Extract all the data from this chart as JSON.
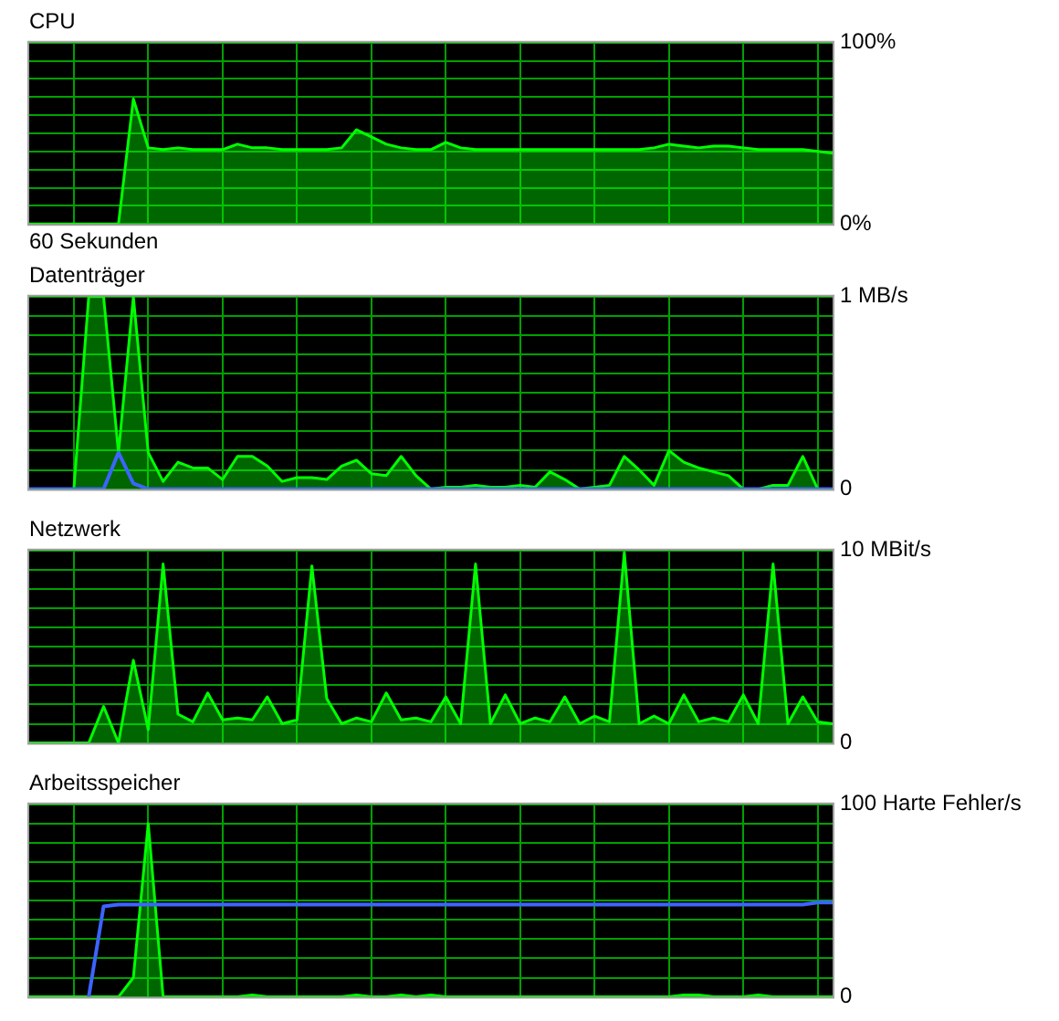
{
  "chart_data": [
    {
      "type": "area",
      "title": "CPU",
      "xlabel": "60 Sekunden",
      "grid": true,
      "tick_labels": "y",
      "categories": [
        null,
        null,
        null,
        null,
        null,
        null,
        null,
        null,
        null,
        null,
        null,
        null,
        null,
        null,
        null,
        null,
        null,
        null,
        null,
        null,
        null,
        null,
        null,
        null,
        null,
        null,
        null,
        null,
        null,
        null,
        null,
        null,
        null,
        null,
        null,
        null,
        null,
        null,
        null,
        null,
        null,
        null,
        null,
        null,
        null,
        null,
        null,
        null,
        null,
        null,
        null,
        null,
        null,
        null,
        null
      ],
      "ylim": [
        0,
        100
      ],
      "yticks": [
        {
          "value": 0,
          "label": "0%"
        },
        {
          "value": 10,
          "label": null
        },
        {
          "value": 20,
          "label": null
        },
        {
          "value": 30,
          "label": null
        },
        {
          "value": 40,
          "label": null
        },
        {
          "value": 50,
          "label": null
        },
        {
          "value": 60,
          "label": null
        },
        {
          "value": 70,
          "label": null
        },
        {
          "value": 80,
          "label": null
        },
        {
          "value": 90,
          "label": null
        },
        {
          "value": 100,
          "label": "100%"
        }
      ],
      "series": [
        {
          "color": "#00ff00",
          "values": [
            0,
            0,
            0,
            0,
            0,
            0,
            0,
            69,
            42,
            41,
            42,
            41,
            41,
            41,
            44,
            42,
            42,
            41,
            41,
            41,
            41,
            42,
            52,
            48,
            44,
            42,
            41,
            41,
            45,
            42,
            41,
            41,
            41,
            41,
            41,
            41,
            41,
            41,
            41,
            41,
            41,
            41,
            42,
            44,
            43,
            42,
            43,
            43,
            42,
            41,
            41,
            41,
            41,
            40,
            39
          ]
        }
      ]
    },
    {
      "type": "area",
      "title": "Datenträger",
      "grid": true,
      "tick_labels": "y",
      "categories": [
        null,
        null,
        null,
        null,
        null,
        null,
        null,
        null,
        null,
        null,
        null,
        null,
        null,
        null,
        null,
        null,
        null,
        null,
        null,
        null,
        null,
        null,
        null,
        null,
        null,
        null,
        null,
        null,
        null,
        null,
        null,
        null,
        null,
        null,
        null,
        null,
        null,
        null,
        null,
        null,
        null,
        null,
        null,
        null,
        null,
        null,
        null,
        null,
        null,
        null,
        null,
        null,
        null,
        null,
        null
      ],
      "ylim": [
        0,
        1
      ],
      "yticks": [
        {
          "value": 0,
          "label": "0"
        },
        {
          "value": 0.1,
          "label": null
        },
        {
          "value": 0.2,
          "label": null
        },
        {
          "value": 0.3,
          "label": null
        },
        {
          "value": 0.4,
          "label": null
        },
        {
          "value": 0.5,
          "label": null
        },
        {
          "value": 0.6,
          "label": null
        },
        {
          "value": 0.7,
          "label": null
        },
        {
          "value": 0.8,
          "label": null
        },
        {
          "value": 0.9,
          "label": null
        },
        {
          "value": 1,
          "label": "1 MB/s"
        }
      ],
      "series": [
        {
          "color": "#00ff00",
          "values": [
            0,
            0,
            0,
            0,
            1,
            1,
            0.19,
            1,
            0.19,
            0.04,
            0.14,
            0.11,
            0.11,
            0.05,
            0.17,
            0.17,
            0.12,
            0.04,
            0.06,
            0.06,
            0.05,
            0.12,
            0.15,
            0.08,
            0.07,
            0.17,
            0.07,
            0,
            0.01,
            0.01,
            0.02,
            0.01,
            0.01,
            0.02,
            0.01,
            0.09,
            0.05,
            0,
            0.01,
            0.02,
            0.17,
            0.1,
            0.02,
            0.2,
            0.14,
            0.11,
            0.09,
            0.07,
            0,
            0,
            0.02,
            0.02,
            0.17,
            0,
            0
          ]
        },
        {
          "type": "line",
          "color": "#3c64ff",
          "values": [
            0,
            0,
            0,
            0,
            0,
            0,
            0.19,
            0.03,
            0,
            0,
            0,
            0,
            0,
            0,
            0,
            0,
            0,
            0,
            0,
            0,
            0,
            0,
            0,
            0,
            0,
            0,
            0,
            0,
            0,
            0,
            0,
            0,
            0,
            0,
            0,
            0,
            0,
            0,
            0,
            0,
            0,
            0,
            0,
            0,
            0,
            0,
            0,
            0,
            0,
            0,
            0,
            0,
            0,
            0,
            0
          ]
        }
      ]
    },
    {
      "type": "area",
      "title": "Netzwerk",
      "grid": true,
      "tick_labels": "y",
      "categories": [
        null,
        null,
        null,
        null,
        null,
        null,
        null,
        null,
        null,
        null,
        null,
        null,
        null,
        null,
        null,
        null,
        null,
        null,
        null,
        null,
        null,
        null,
        null,
        null,
        null,
        null,
        null,
        null,
        null,
        null,
        null,
        null,
        null,
        null,
        null,
        null,
        null,
        null,
        null,
        null,
        null,
        null,
        null,
        null,
        null,
        null,
        null,
        null,
        null,
        null,
        null,
        null,
        null,
        null,
        null
      ],
      "ylim": [
        0,
        10
      ],
      "yticks": [
        {
          "value": 0,
          "label": "0"
        },
        {
          "value": 1,
          "label": null
        },
        {
          "value": 2,
          "label": null
        },
        {
          "value": 3,
          "label": null
        },
        {
          "value": 4,
          "label": null
        },
        {
          "value": 5,
          "label": null
        },
        {
          "value": 6,
          "label": null
        },
        {
          "value": 7,
          "label": null
        },
        {
          "value": 8,
          "label": null
        },
        {
          "value": 9,
          "label": null
        },
        {
          "value": 10,
          "label": "10 MBit/s"
        }
      ],
      "series": [
        {
          "color": "#00ff00",
          "values": [
            0,
            0,
            0,
            0,
            0,
            1.9,
            0,
            4.3,
            0.7,
            9.3,
            1.5,
            1.1,
            2.6,
            1.2,
            1.3,
            1.2,
            2.4,
            1.0,
            1.2,
            9.2,
            2.3,
            1.0,
            1.3,
            1.1,
            2.6,
            1.2,
            1.3,
            1.1,
            2.4,
            1.0,
            9.3,
            1.0,
            2.5,
            1.0,
            1.3,
            1.1,
            2.4,
            1.0,
            1.4,
            1.1,
            9.9,
            1.0,
            1.4,
            1.0,
            2.5,
            1.1,
            1.3,
            1.1,
            2.5,
            1.0,
            9.3,
            1.0,
            2.4,
            1.1,
            1.0
          ]
        }
      ]
    },
    {
      "type": "area",
      "title": "Arbeitsspeicher",
      "grid": true,
      "tick_labels": "y",
      "categories": [
        null,
        null,
        null,
        null,
        null,
        null,
        null,
        null,
        null,
        null,
        null,
        null,
        null,
        null,
        null,
        null,
        null,
        null,
        null,
        null,
        null,
        null,
        null,
        null,
        null,
        null,
        null,
        null,
        null,
        null,
        null,
        null,
        null,
        null,
        null,
        null,
        null,
        null,
        null,
        null,
        null,
        null,
        null,
        null,
        null,
        null,
        null,
        null,
        null,
        null,
        null,
        null,
        null,
        null,
        null
      ],
      "ylim": [
        0,
        100
      ],
      "yticks": [
        {
          "value": 0,
          "label": "0"
        },
        {
          "value": 10,
          "label": null
        },
        {
          "value": 20,
          "label": null
        },
        {
          "value": 30,
          "label": null
        },
        {
          "value": 40,
          "label": null
        },
        {
          "value": 50,
          "label": null
        },
        {
          "value": 60,
          "label": null
        },
        {
          "value": 70,
          "label": null
        },
        {
          "value": 80,
          "label": null
        },
        {
          "value": 90,
          "label": null
        },
        {
          "value": 100,
          "label": "100 Harte Fehler/s"
        }
      ],
      "series": [
        {
          "color": "#00ff00",
          "values": [
            0,
            0,
            0,
            0,
            0,
            0,
            0,
            10,
            90,
            0,
            0,
            0,
            0,
            0,
            0,
            1,
            0,
            0,
            0,
            0,
            0,
            0,
            1,
            0,
            0,
            1,
            0,
            1,
            0,
            0,
            0,
            0,
            0,
            0,
            0,
            0,
            0,
            0,
            0,
            0,
            0,
            0,
            0,
            0,
            1,
            1,
            0,
            0,
            0,
            1,
            0,
            0,
            0,
            0,
            0
          ]
        },
        {
          "type": "line",
          "color": "#3c64ff",
          "values": [
            null,
            null,
            null,
            null,
            0,
            47,
            48,
            48,
            48,
            48,
            48,
            48,
            48,
            48,
            48,
            48,
            48,
            48,
            48,
            48,
            48,
            48,
            48,
            48,
            48,
            48,
            48,
            48,
            48,
            48,
            48,
            48,
            48,
            48,
            48,
            48,
            48,
            48,
            48,
            48,
            48,
            48,
            48,
            48,
            48,
            48,
            48,
            48,
            48,
            48,
            48,
            48,
            48,
            49,
            49
          ]
        }
      ]
    }
  ]
}
